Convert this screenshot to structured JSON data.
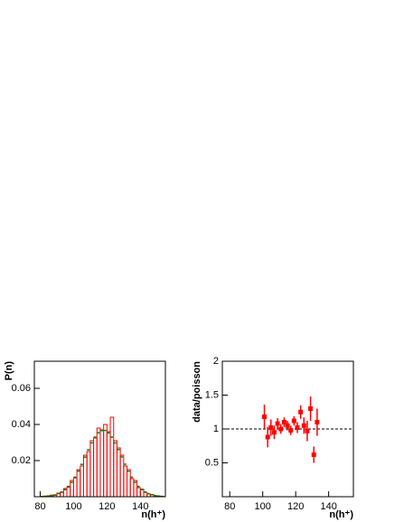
{
  "chart_data": [
    {
      "type": "histogram",
      "ylabel": "P(n)",
      "xlabel": "n(h⁺)",
      "bins": [
        80,
        82,
        84,
        86,
        88,
        90,
        92,
        94,
        96,
        98,
        100,
        102,
        104,
        106,
        108,
        110,
        112,
        114,
        116,
        118,
        120,
        122,
        124,
        126,
        128,
        130,
        132,
        134,
        136,
        138,
        140,
        142,
        144,
        146,
        148,
        150,
        152,
        154
      ],
      "series": [
        {
          "color": "#ff0000",
          "style": "solid",
          "values": [
            0.0001,
            0.0003,
            0.0004,
            0.0009,
            0.0008,
            0.002,
            0.0024,
            0.0045,
            0.0052,
            0.009,
            0.0104,
            0.015,
            0.017,
            0.023,
            0.025,
            0.031,
            0.0325,
            0.038,
            0.037,
            0.04,
            0.036,
            0.044,
            0.031,
            0.027,
            0.023,
            0.017,
            0.015,
            0.01,
            0.009,
            0.005,
            0.0042,
            0.0024,
            0.0015,
            0.0012,
            0.0005,
            0.0003,
            0.0002
          ]
        },
        {
          "color": "#008000",
          "style": "dashed",
          "values": [
            0.0001,
            0.0002,
            0.0004,
            0.0006,
            0.001,
            0.0017,
            0.0026,
            0.0039,
            0.0057,
            0.008,
            0.0108,
            0.0142,
            0.0179,
            0.0219,
            0.026,
            0.0298,
            0.033,
            0.0354,
            0.0366,
            0.0367,
            0.0353,
            0.033,
            0.0298,
            0.0261,
            0.022,
            0.018,
            0.0141,
            0.0108,
            0.008,
            0.0057,
            0.0039,
            0.0026,
            0.0017,
            0.0011,
            0.0006,
            0.0004,
            0.0002
          ]
        }
      ],
      "xlim": [
        76.5,
        155
      ],
      "ylim": [
        0,
        0.075
      ],
      "xticks": [
        80,
        100,
        120,
        140
      ],
      "yticks": [
        0.02,
        0.04,
        0.06
      ]
    },
    {
      "type": "errorbar",
      "ylabel": "data/poisson",
      "xlabel": "n(h⁺)",
      "color": "#ff0000",
      "x": [
        101,
        103,
        105,
        107,
        109,
        111,
        113,
        115,
        117,
        119,
        121,
        123,
        125,
        127,
        129,
        131,
        133
      ],
      "values": [
        1.18,
        0.88,
        1.02,
        0.95,
        1.08,
        1.0,
        1.1,
        1.05,
        0.98,
        1.12,
        1.02,
        1.25,
        1.05,
        0.97,
        1.3,
        0.62,
        1.1
      ],
      "errors": [
        0.18,
        0.15,
        0.12,
        0.1,
        0.08,
        0.07,
        0.07,
        0.07,
        0.07,
        0.07,
        0.08,
        0.1,
        0.12,
        0.15,
        0.18,
        0.12,
        0.2
      ],
      "reference_line": 1,
      "xlim": [
        75.5,
        155
      ],
      "ylim": [
        0,
        2
      ],
      "xticks": [
        80,
        100,
        120,
        140
      ],
      "yticks": [
        0.5,
        1,
        1.5,
        2
      ]
    }
  ]
}
